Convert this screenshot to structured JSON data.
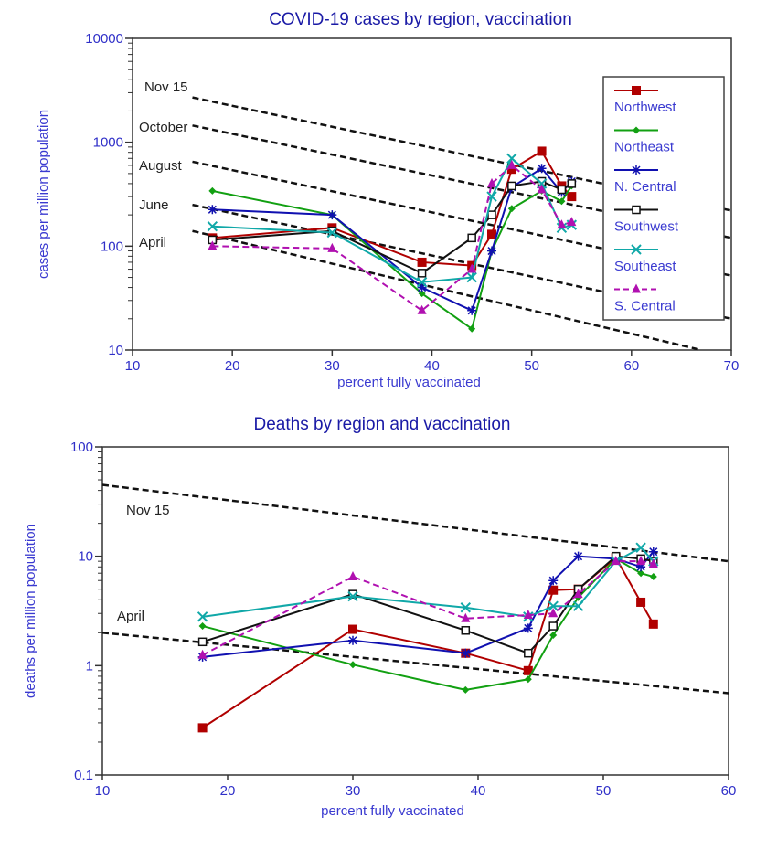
{
  "chart_data": [
    {
      "type": "line",
      "title": "COVID-19 cases by region, vaccination",
      "xlabel": "percent fully vaccinated",
      "ylabel": "cases per million population",
      "xlim": [
        10,
        70
      ],
      "ylim": [
        10,
        10000
      ],
      "yscale": "log",
      "xticks": [
        "10",
        "20",
        "30",
        "40",
        "50",
        "60",
        "70"
      ],
      "yticks": [
        "10",
        "100",
        "1000",
        "10000"
      ],
      "grid": false,
      "legend_position": "top-right",
      "x": [
        18,
        30,
        39,
        44,
        46,
        48,
        51,
        53,
        54
      ],
      "series": [
        {
          "name": "Northwest",
          "color": "#b00000",
          "marker": "square",
          "dash": false,
          "values": [
            120,
            150,
            70,
            65,
            130,
            550,
            820,
            380,
            300
          ]
        },
        {
          "name": "Northeast",
          "color": "#12a012",
          "marker": "diamond",
          "dash": false,
          "values": [
            340,
            200,
            35,
            16,
            90,
            230,
            340,
            270,
            380
          ]
        },
        {
          "name": "N. Central",
          "color": "#1010b0",
          "marker": "star",
          "dash": false,
          "values": [
            225,
            200,
            40,
            24,
            90,
            370,
            560,
            330,
            420
          ]
        },
        {
          "name": "Southwest",
          "color": "#111111",
          "marker": "open-square",
          "dash": false,
          "values": [
            115,
            140,
            55,
            120,
            200,
            380,
            420,
            350,
            400
          ]
        },
        {
          "name": "Southeast",
          "color": "#10a8a8",
          "marker": "x",
          "dash": false,
          "values": [
            155,
            135,
            45,
            50,
            300,
            700,
            400,
            150,
            160
          ]
        },
        {
          "name": "S. Central",
          "color": "#b010b0",
          "marker": "triangle",
          "dash": true,
          "values": [
            100,
            95,
            24,
            60,
            400,
            600,
            350,
            160,
            170
          ]
        }
      ],
      "reference_lines": [
        {
          "label": "Nov 15",
          "x": [
            16,
            70
          ],
          "y": [
            2700,
            220
          ]
        },
        {
          "label": "October",
          "x": [
            16,
            70
          ],
          "y": [
            1450,
            120
          ]
        },
        {
          "label": "August",
          "x": [
            16,
            70
          ],
          "y": [
            650,
            52
          ]
        },
        {
          "label": "June",
          "x": [
            16,
            70
          ],
          "y": [
            250,
            20
          ]
        },
        {
          "label": "April",
          "x": [
            16,
            67
          ],
          "y": [
            140,
            10
          ]
        }
      ]
    },
    {
      "type": "line",
      "title": "Deaths by region and vaccination",
      "xlabel": "percent fully vaccinated",
      "ylabel": "deaths per million population",
      "xlim": [
        10,
        60
      ],
      "ylim": [
        0.1,
        100
      ],
      "yscale": "log",
      "xticks": [
        "10",
        "20",
        "30",
        "40",
        "50",
        "60"
      ],
      "yticks": [
        "0.1",
        "1",
        "10",
        "100"
      ],
      "grid": false,
      "x": [
        18,
        30,
        39,
        44,
        46,
        48,
        51,
        53,
        54
      ],
      "series": [
        {
          "name": "Northwest",
          "color": "#b00000",
          "marker": "square",
          "dash": false,
          "values": [
            0.27,
            2.15,
            1.3,
            0.9,
            4.9,
            5.0,
            9.7,
            3.8,
            2.4
          ]
        },
        {
          "name": "Northeast",
          "color": "#12a012",
          "marker": "diamond",
          "dash": false,
          "values": [
            2.3,
            1.02,
            0.6,
            0.75,
            1.9,
            4.2,
            9.5,
            7.0,
            6.5
          ]
        },
        {
          "name": "N. Central",
          "color": "#1010b0",
          "marker": "star",
          "dash": false,
          "values": [
            1.2,
            1.7,
            1.3,
            2.2,
            6.0,
            10.0,
            9.5,
            8.0,
            11.0
          ]
        },
        {
          "name": "Southwest",
          "color": "#111111",
          "marker": "open-square",
          "dash": false,
          "values": [
            1.65,
            4.5,
            2.1,
            1.3,
            2.3,
            5.0,
            10.0,
            9.5,
            9.0
          ]
        },
        {
          "name": "Southeast",
          "color": "#10a8a8",
          "marker": "x",
          "dash": false,
          "values": [
            2.8,
            4.3,
            3.4,
            2.8,
            3.5,
            3.5,
            9.0,
            12.0,
            9.0
          ]
        },
        {
          "name": "S. Central",
          "color": "#b010b0",
          "marker": "triangle",
          "dash": true,
          "values": [
            1.25,
            6.5,
            2.7,
            2.9,
            3.0,
            4.5,
            9.0,
            9.0,
            8.5
          ]
        }
      ],
      "reference_lines": [
        {
          "label": "Nov 15",
          "x": [
            10,
            60
          ],
          "y": [
            45,
            9
          ]
        },
        {
          "label": "April",
          "x": [
            10,
            60
          ],
          "y": [
            2.0,
            0.56
          ]
        }
      ]
    }
  ]
}
